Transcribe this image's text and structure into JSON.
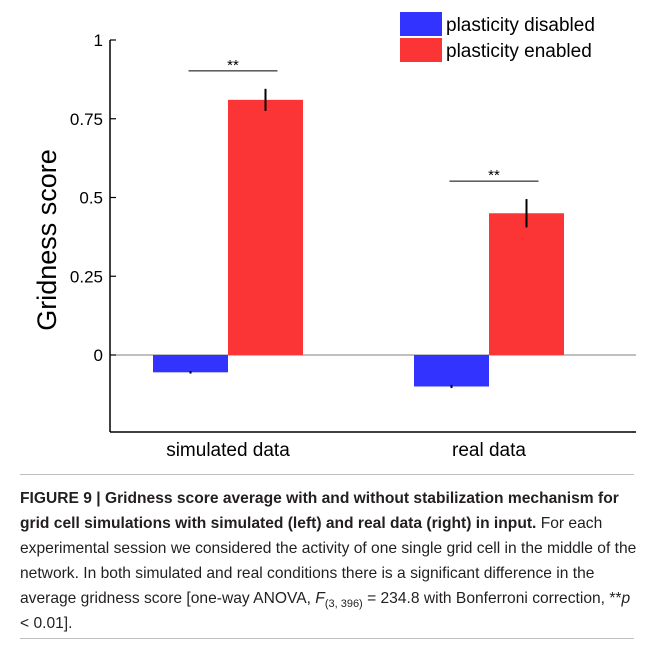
{
  "chart_data": {
    "type": "bar",
    "categories": [
      "simulated data",
      "real data"
    ],
    "series": [
      {
        "name": "plasticity disabled",
        "color": "#3333ff",
        "values": [
          -0.055,
          -0.1
        ],
        "errors": [
          0.004,
          0.005
        ]
      },
      {
        "name": "plasticity enabled",
        "color": "#fb3535",
        "values": [
          0.81,
          0.45
        ],
        "errors": [
          0.035,
          0.045
        ]
      }
    ],
    "ylabel": "Gridness score",
    "xlabel": "",
    "title": "",
    "ylim": [
      -0.25,
      1
    ],
    "yticks": [
      {
        "v": 1,
        "label": "1"
      },
      {
        "v": 0.75,
        "label": "0.75"
      },
      {
        "v": 0.5,
        "label": "0.5"
      },
      {
        "v": 0.25,
        "label": "0.25"
      },
      {
        "v": 0,
        "label": "0"
      }
    ],
    "significance": [
      "**",
      "**"
    ],
    "legend_position": "top-right",
    "grid": false
  },
  "caption": {
    "bold": "FIGURE 9 | Gridness score average with and without stabilization mechanism for grid cell simulations with simulated (left) and real data (right) in input.",
    "text_1": " For each experimental session we considered the activity of one single grid cell in the middle of the network. In both simulated and real conditions there is a significant difference in the average gridness score [one-way ANOVA, ",
    "stat_F": "F",
    "stat_df": "(3, 396)",
    "text_2": " = 234.8 with Bonferroni correction, **",
    "stat_p": "p",
    "text_3": " < 0.01]."
  }
}
